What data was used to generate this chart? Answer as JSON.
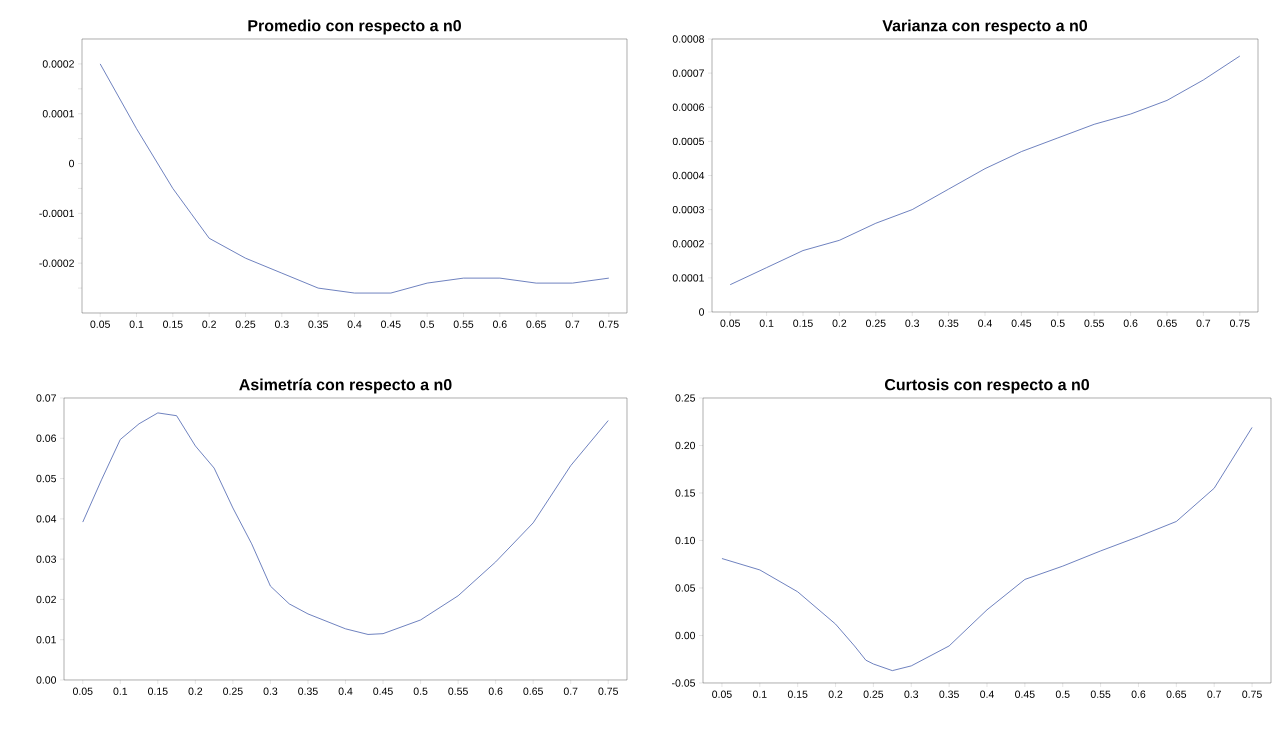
{
  "chart_data": [
    {
      "type": "line",
      "title": "Promedio con respecto a n0",
      "color": "#4a62ae",
      "xlim": [
        0.025,
        0.775
      ],
      "ylim": [
        -0.0003,
        0.00025
      ],
      "x": [
        0.05,
        0.1,
        0.15,
        0.175,
        0.2,
        0.225,
        0.25,
        0.3,
        0.35,
        0.4,
        0.45,
        0.5,
        0.55,
        0.6,
        0.65,
        0.7,
        0.75
      ],
      "values": [
        0.0002,
        7e-05,
        -5e-05,
        -0.0001,
        -0.00015,
        -0.00017,
        -0.00019,
        -0.00022,
        -0.00025,
        -0.00026,
        -0.00026,
        -0.00024,
        -0.00023,
        -0.00023,
        -0.00024,
        -0.00024,
        -0.00023
      ],
      "xticks": [
        0.05,
        0.1,
        0.15,
        0.2,
        0.25,
        0.3,
        0.35,
        0.4,
        0.45,
        0.5,
        0.55,
        0.6,
        0.65,
        0.7,
        0.75
      ],
      "yticks": [
        {
          "value": -0.00025,
          "label": null
        },
        -0.0002,
        {
          "value": -0.00015,
          "label": null
        },
        -0.0001,
        {
          "value": -5e-05,
          "label": null
        },
        0,
        {
          "value": 5e-05,
          "label": null
        },
        0.0001,
        {
          "value": 0.00015,
          "label": null
        },
        0.0002
      ]
    },
    {
      "type": "line",
      "title": "Varianza con respecto a n0",
      "color": "#4a62ae",
      "xlim": [
        0.025,
        0.775
      ],
      "ylim": [
        0,
        0.0008
      ],
      "x": [
        0.05,
        0.1,
        0.15,
        0.2,
        0.25,
        0.3,
        0.35,
        0.4,
        0.45,
        0.5,
        0.55,
        0.6,
        0.65,
        0.7,
        0.75
      ],
      "values": [
        8e-05,
        0.00013,
        0.00018,
        0.00021,
        0.00026,
        0.0003,
        0.00036,
        0.00042,
        0.00047,
        0.00051,
        0.00055,
        0.00058,
        0.00062,
        0.00068,
        0.00075
      ],
      "xticks": [
        0.05,
        0.1,
        0.15,
        0.2,
        0.25,
        0.3,
        0.35,
        0.4,
        0.45,
        0.5,
        0.55,
        0.6,
        0.65,
        0.7,
        0.75
      ],
      "yticks": [
        0,
        0.0001,
        0.0002,
        0.0003,
        0.0004,
        0.0005,
        0.0006,
        0.0007,
        0.0008
      ]
    },
    {
      "type": "line",
      "title": "Asimetría con respecto a n0",
      "color": "#4a62ae",
      "xlim": [
        0.025,
        0.775
      ],
      "ylim": [
        0,
        0.07
      ],
      "x": [
        0.05,
        0.075,
        0.1,
        0.125,
        0.15,
        0.175,
        0.2,
        0.225,
        0.25,
        0.275,
        0.3,
        0.325,
        0.35,
        0.4,
        0.43,
        0.45,
        0.5,
        0.55,
        0.6,
        0.65,
        0.7,
        0.75
      ],
      "values": [
        0.0392,
        0.0497,
        0.0597,
        0.0636,
        0.0663,
        0.0656,
        0.0581,
        0.0526,
        0.0427,
        0.0338,
        0.0233,
        0.0189,
        0.0164,
        0.0127,
        0.0113,
        0.0115,
        0.0149,
        0.0209,
        0.0293,
        0.039,
        0.0532,
        0.0644
      ],
      "xticks": [
        0.05,
        0.1,
        0.15,
        0.2,
        0.25,
        0.3,
        0.35,
        0.4,
        0.45,
        0.5,
        0.55,
        0.6,
        0.65,
        0.7,
        0.75
      ],
      "yticks": [
        {
          "value": 0,
          "label": "0.00"
        },
        0.01,
        0.02,
        0.03,
        0.04,
        0.05,
        0.06,
        0.07
      ]
    },
    {
      "type": "line",
      "title": "Curtosis con respecto a n0",
      "color": "#4a62ae",
      "xlim": [
        0.025,
        0.775
      ],
      "ylim": [
        -0.05,
        0.25
      ],
      "x": [
        0.05,
        0.1,
        0.15,
        0.2,
        0.225,
        0.24,
        0.25,
        0.275,
        0.3,
        0.35,
        0.4,
        0.45,
        0.5,
        0.55,
        0.6,
        0.65,
        0.7,
        0.75
      ],
      "values": [
        0.081,
        0.069,
        0.046,
        0.012,
        -0.011,
        -0.026,
        -0.03,
        -0.037,
        -0.032,
        -0.011,
        0.027,
        0.059,
        0.073,
        0.089,
        0.104,
        0.12,
        0.155,
        0.219
      ],
      "xticks": [
        0.05,
        0.1,
        0.15,
        0.2,
        0.25,
        0.3,
        0.35,
        0.4,
        0.45,
        0.5,
        0.55,
        0.6,
        0.65,
        0.7,
        0.75
      ],
      "yticks": [
        -0.05,
        {
          "value": 0,
          "label": "0.00"
        },
        0.05,
        {
          "value": 0.1,
          "label": "0.10"
        },
        0.15,
        {
          "value": 0.2,
          "label": "0.20"
        },
        0.25
      ]
    }
  ]
}
